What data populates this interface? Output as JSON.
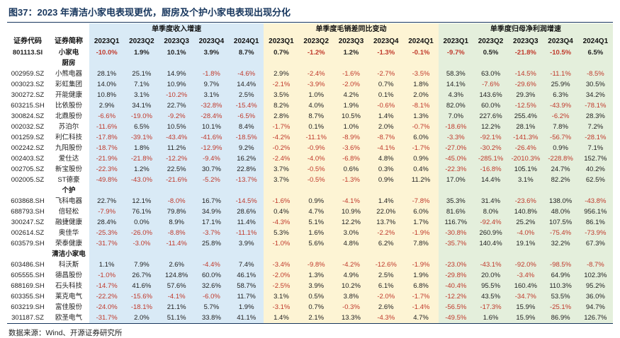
{
  "title": "图37：2023 年清洁小家电表现更优，厨房及个护小家电表现出现分化",
  "source": "数据来源：Wind、开源证券研究所",
  "colors": {
    "accent": "#17365d",
    "negative": "#c0392b",
    "revenue_bg": "#d9eaf6",
    "margin_bg": "#fdf4d4",
    "profit_bg": "#e4efdc"
  },
  "chart_data": {
    "type": "table",
    "title": "图37：2023 年清洁小家电表现更优，厨房及个护小家电表现出现分化",
    "id_headers": [
      "证券代码",
      "证券简称"
    ],
    "column_groups": [
      {
        "label": "单季度收入增速",
        "quarters": [
          "2023Q1",
          "2023Q2",
          "2023Q3",
          "2023Q4",
          "2024Q1"
        ]
      },
      {
        "label": "单季度毛销差同比变动",
        "quarters": [
          "2023Q1",
          "2023Q2",
          "2023Q3",
          "2023Q4",
          "2024Q1"
        ]
      },
      {
        "label": "单季度归母净利润增速",
        "quarters": [
          "2023Q1",
          "2023Q2",
          "2023Q3",
          "2023Q4",
          "2024Q1"
        ]
      }
    ],
    "rows": [
      {
        "kind": "summary",
        "code": "801113.SI",
        "name": "小家电",
        "values": [
          "-10.0%",
          "1.9%",
          "10.1%",
          "3.9%",
          "8.7%",
          "0.7%",
          "-1.2%",
          "1.2%",
          "-1.3%",
          "-0.1%",
          "-9.7%",
          "0.5%",
          "-21.8%",
          "-10.5%",
          "6.5%"
        ]
      },
      {
        "kind": "section",
        "label": "厨房"
      },
      {
        "kind": "data",
        "code": "002959.SZ",
        "name": "小熊电器",
        "values": [
          "28.1%",
          "25.1%",
          "14.9%",
          "-1.8%",
          "-4.6%",
          "2.9%",
          "-2.4%",
          "-1.6%",
          "-2.7%",
          "-3.5%",
          "58.3%",
          "63.0%",
          "-14.5%",
          "-11.1%",
          "-8.5%"
        ]
      },
      {
        "kind": "data",
        "code": "003023.SZ",
        "name": "彩虹集团",
        "values": [
          "14.0%",
          "7.1%",
          "10.9%",
          "9.7%",
          "14.4%",
          "-2.1%",
          "-3.9%",
          "-2.0%",
          "0.7%",
          "1.8%",
          "14.1%",
          "-7.6%",
          "-29.6%",
          "25.9%",
          "30.5%"
        ]
      },
      {
        "kind": "data",
        "code": "300272.SZ",
        "name": "开能健康",
        "values": [
          "10.8%",
          "3.1%",
          "-10.2%",
          "3.1%",
          "2.5%",
          "3.5%",
          "1.0%",
          "4.2%",
          "0.1%",
          "2.0%",
          "4.3%",
          "143.6%",
          "29.3%",
          "6.3%",
          "34.2%"
        ]
      },
      {
        "kind": "data",
        "code": "603215.SH",
        "name": "比依股份",
        "values": [
          "2.9%",
          "34.1%",
          "22.7%",
          "-32.8%",
          "-15.4%",
          "8.2%",
          "4.0%",
          "1.9%",
          "-0.6%",
          "-8.1%",
          "82.0%",
          "60.0%",
          "-12.5%",
          "-43.9%",
          "-78.1%"
        ]
      },
      {
        "kind": "data",
        "code": "300824.SZ",
        "name": "北鼎股份",
        "values": [
          "-6.6%",
          "-19.0%",
          "-9.2%",
          "-28.4%",
          "-6.5%",
          "2.8%",
          "8.7%",
          "10.5%",
          "1.4%",
          "1.3%",
          "7.0%",
          "227.6%",
          "255.4%",
          "-6.2%",
          "28.3%"
        ]
      },
      {
        "kind": "data",
        "code": "002032.SZ",
        "name": "苏泊尔",
        "values": [
          "-11.6%",
          "6.5%",
          "10.5%",
          "10.1%",
          "8.4%",
          "-1.7%",
          "0.1%",
          "1.0%",
          "2.0%",
          "-0.7%",
          "-18.6%",
          "12.2%",
          "28.1%",
          "7.8%",
          "7.2%"
        ]
      },
      {
        "kind": "data",
        "code": "001259.SZ",
        "name": "利仁科技",
        "values": [
          "-17.8%",
          "-39.1%",
          "-43.4%",
          "-41.6%",
          "-18.5%",
          "-4.2%",
          "-11.1%",
          "-8.9%",
          "-8.7%",
          "6.0%",
          "-3.3%",
          "-92.1%",
          "-141.3%",
          "-56.7%",
          "-28.1%"
        ]
      },
      {
        "kind": "data",
        "code": "002242.SZ",
        "name": "九阳股份",
        "values": [
          "-18.7%",
          "1.8%",
          "11.2%",
          "-12.9%",
          "9.2%",
          "-0.2%",
          "-0.9%",
          "-3.6%",
          "-4.1%",
          "-1.7%",
          "-27.0%",
          "-30.2%",
          "-26.4%",
          "0.9%",
          "7.1%"
        ]
      },
      {
        "kind": "data",
        "code": "002403.SZ",
        "name": "爱仕达",
        "values": [
          "-21.9%",
          "-21.8%",
          "-12.2%",
          "-9.4%",
          "16.2%",
          "-2.4%",
          "-4.0%",
          "-6.8%",
          "4.8%",
          "0.9%",
          "-45.0%",
          "-285.1%",
          "-2010.3%",
          "-228.8%",
          "152.7%"
        ]
      },
      {
        "kind": "data",
        "code": "002705.SZ",
        "name": "新宝股份",
        "values": [
          "-22.3%",
          "1.2%",
          "22.5%",
          "30.7%",
          "22.8%",
          "3.7%",
          "-0.5%",
          "0.6%",
          "0.3%",
          "0.4%",
          "-22.3%",
          "-16.8%",
          "105.1%",
          "24.7%",
          "40.2%"
        ]
      },
      {
        "kind": "data",
        "code": "002005.SZ",
        "name": "ST德豪",
        "values": [
          "-49.8%",
          "-43.0%",
          "-21.6%",
          "-5.2%",
          "-13.7%",
          "3.7%",
          "-0.5%",
          "-1.3%",
          "0.9%",
          "11.2%",
          "17.0%",
          "14.4%",
          "3.1%",
          "82.2%",
          "62.5%"
        ]
      },
      {
        "kind": "section",
        "label": "个护"
      },
      {
        "kind": "data",
        "code": "603868.SH",
        "name": "飞科电器",
        "values": [
          "22.7%",
          "12.1%",
          "-8.0%",
          "16.7%",
          "-14.5%",
          "-1.6%",
          "0.9%",
          "-4.1%",
          "1.4%",
          "-7.8%",
          "35.3%",
          "31.4%",
          "-23.6%",
          "138.0%",
          "-43.8%"
        ]
      },
      {
        "kind": "data",
        "code": "688793.SH",
        "name": "倍轻松",
        "values": [
          "-7.9%",
          "76.1%",
          "79.8%",
          "34.9%",
          "28.6%",
          "0.4%",
          "4.7%",
          "10.9%",
          "22.0%",
          "6.0%",
          "81.6%",
          "8.0%",
          "140.8%",
          "48.0%",
          "956.1%"
        ]
      },
      {
        "kind": "data",
        "code": "300247.SZ",
        "name": "融捷健康",
        "values": [
          "28.4%",
          "0.0%",
          "8.9%",
          "17.1%",
          "11.4%",
          "-4.3%",
          "5.1%",
          "12.2%",
          "13.7%",
          "1.7%",
          "116.7%",
          "-92.4%",
          "25.2%",
          "107.5%",
          "86.1%"
        ]
      },
      {
        "kind": "data",
        "code": "002614.SZ",
        "name": "奥佳华",
        "values": [
          "-25.3%",
          "-26.0%",
          "-8.8%",
          "-3.7%",
          "-11.1%",
          "5.3%",
          "1.6%",
          "3.0%",
          "-2.2%",
          "-1.9%",
          "-30.8%",
          "260.9%",
          "-4.0%",
          "-75.4%",
          "-73.9%"
        ]
      },
      {
        "kind": "data",
        "code": "603579.SH",
        "name": "荣泰健康",
        "values": [
          "-31.7%",
          "-3.0%",
          "-11.4%",
          "25.8%",
          "3.9%",
          "-1.0%",
          "5.6%",
          "4.8%",
          "6.2%",
          "7.8%",
          "-35.7%",
          "140.4%",
          "19.1%",
          "32.2%",
          "67.3%"
        ]
      },
      {
        "kind": "section",
        "label": "清洁小家电"
      },
      {
        "kind": "data",
        "code": "603486.SH",
        "name": "科沃斯",
        "values": [
          "1.1%",
          "7.9%",
          "2.6%",
          "-4.4%",
          "7.4%",
          "-3.4%",
          "-9.8%",
          "-4.2%",
          "-12.6%",
          "-1.9%",
          "-23.0%",
          "-43.1%",
          "-92.0%",
          "-98.5%",
          "-8.7%"
        ]
      },
      {
        "kind": "data",
        "code": "605555.SH",
        "name": "德昌股份",
        "values": [
          "-1.0%",
          "26.7%",
          "124.8%",
          "60.0%",
          "46.1%",
          "-2.0%",
          "1.3%",
          "4.9%",
          "2.5%",
          "1.9%",
          "-29.8%",
          "20.0%",
          "-3.4%",
          "64.9%",
          "102.3%"
        ]
      },
      {
        "kind": "data",
        "code": "688169.SH",
        "name": "石头科技",
        "values": [
          "-14.7%",
          "41.6%",
          "57.6%",
          "32.6%",
          "58.7%",
          "-2.5%",
          "3.9%",
          "10.2%",
          "6.1%",
          "6.8%",
          "-40.4%",
          "95.5%",
          "160.4%",
          "110.3%",
          "95.2%"
        ]
      },
      {
        "kind": "data",
        "code": "603355.SH",
        "name": "莱克电气",
        "values": [
          "-22.2%",
          "-15.6%",
          "-4.1%",
          "-6.0%",
          "11.7%",
          "3.1%",
          "0.5%",
          "3.8%",
          "-2.0%",
          "-1.7%",
          "-12.2%",
          "43.5%",
          "-34.7%",
          "53.5%",
          "36.0%"
        ]
      },
      {
        "kind": "data",
        "code": "603219.SH",
        "name": "富佳股份",
        "values": [
          "-24.0%",
          "-18.1%",
          "21.1%",
          "5.7%",
          "1.9%",
          "-3.1%",
          "0.7%",
          "-0.3%",
          "2.6%",
          "-1.4%",
          "-56.5%",
          "-17.3%",
          "15.9%",
          "-25.1%",
          "94.7%"
        ]
      },
      {
        "kind": "data",
        "code": "301187.SZ",
        "name": "欧圣电气",
        "values": [
          "-31.7%",
          "2.0%",
          "51.1%",
          "33.8%",
          "41.1%",
          "1.4%",
          "2.1%",
          "13.3%",
          "-4.3%",
          "4.7%",
          "-49.5%",
          "1.6%",
          "15.9%",
          "86.9%",
          "126.7%"
        ]
      }
    ]
  }
}
